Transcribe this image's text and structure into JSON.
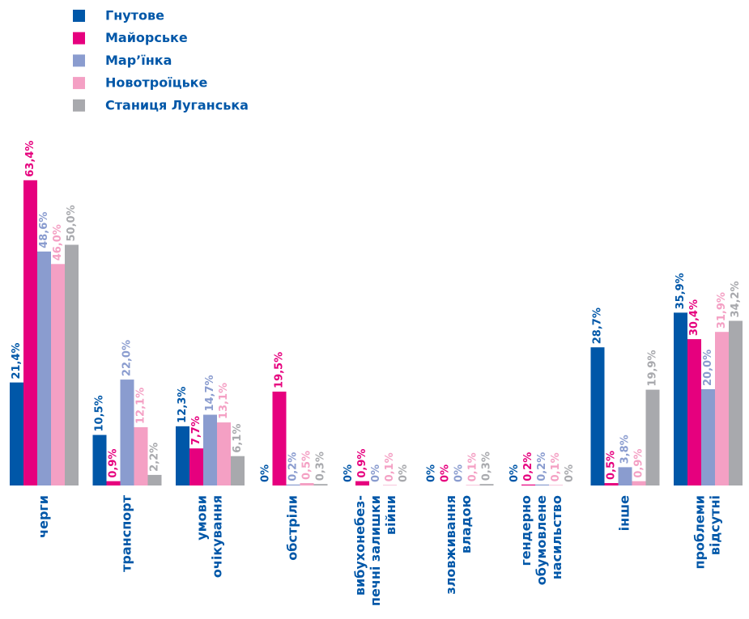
{
  "chart_data": {
    "type": "bar",
    "categories": [
      [
        "черги"
      ],
      [
        "транспорт"
      ],
      [
        "умови",
        "очікування"
      ],
      [
        "обстріли"
      ],
      [
        "вибухонебез-",
        "печні залишки",
        "війни"
      ],
      [
        "зловживання",
        "владою"
      ],
      [
        "гендерно",
        "обумовлене",
        "насильство"
      ],
      [
        "інше"
      ],
      [
        "проблеми",
        "відсутні"
      ]
    ],
    "series": [
      {
        "name": "Гнутове",
        "color": "#0057a8",
        "values": [
          21.4,
          10.5,
          12.3,
          0,
          0,
          0,
          0,
          28.7,
          35.9
        ],
        "value_labels": [
          "21,4%",
          "10,5%",
          "12,3%",
          "0%",
          "0%",
          "0%",
          "0%",
          "28,7%",
          "35,9%"
        ]
      },
      {
        "name": "Майорське",
        "color": "#e6007e",
        "values": [
          63.4,
          0.9,
          7.7,
          19.5,
          0.9,
          0,
          0.2,
          0.5,
          30.4
        ],
        "value_labels": [
          "63,4%",
          "0,9%",
          "7,7%",
          "19,5%",
          "0,9%",
          "0%",
          "0,2%",
          "0,5%",
          "30,4%"
        ]
      },
      {
        "name": "Мар’їнка",
        "color": "#8a9ccf",
        "values": [
          48.6,
          22.0,
          14.7,
          0.2,
          0,
          0,
          0.2,
          3.8,
          20.0
        ],
        "value_labels": [
          "48,6%",
          "22,0%",
          "14,7%",
          "0,2%",
          "0%",
          "0%",
          "0,2%",
          "3,8%",
          "20,0%"
        ]
      },
      {
        "name": "Новотроїцьке",
        "color": "#f4a0c4",
        "values": [
          46.0,
          12.1,
          13.1,
          0.5,
          0.1,
          0.1,
          0.1,
          0.9,
          31.9
        ],
        "value_labels": [
          "46,0%",
          "12,1%",
          "13,1%",
          "0,5%",
          "0,1%",
          "0,1%",
          "0,1%",
          "0,9%",
          "31,9%"
        ]
      },
      {
        "name": "Станиця Луганська",
        "color": "#a8a9ad",
        "values": [
          50.0,
          2.2,
          6.1,
          0.3,
          0,
          0.3,
          0,
          19.9,
          34.2
        ],
        "value_labels": [
          "50,0%",
          "2,2%",
          "6,1%",
          "0,3%",
          "0%",
          "0,3%",
          "0%",
          "19,9%",
          "34,2%"
        ]
      }
    ]
  }
}
